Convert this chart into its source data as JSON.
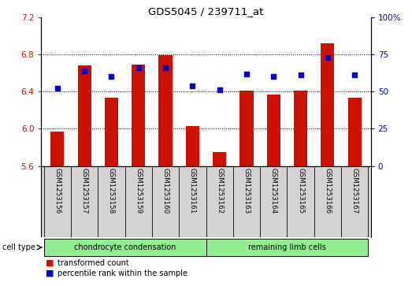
{
  "title": "GDS5045 / 239711_at",
  "samples": [
    "GSM1253156",
    "GSM1253157",
    "GSM1253158",
    "GSM1253159",
    "GSM1253160",
    "GSM1253161",
    "GSM1253162",
    "GSM1253163",
    "GSM1253164",
    "GSM1253165",
    "GSM1253166",
    "GSM1253167"
  ],
  "transformed_count": [
    5.97,
    6.68,
    6.33,
    6.69,
    6.79,
    6.03,
    5.75,
    6.41,
    6.37,
    6.41,
    6.92,
    6.33
  ],
  "percentile_rank": [
    52,
    64,
    60,
    66,
    66,
    54,
    51,
    62,
    60,
    61,
    73,
    61
  ],
  "ylim_left": [
    5.6,
    7.2
  ],
  "ylim_right": [
    0,
    100
  ],
  "yticks_left": [
    5.6,
    6.0,
    6.4,
    6.8,
    7.2
  ],
  "yticks_right": [
    0,
    25,
    50,
    75,
    100
  ],
  "bar_color": "#cc1100",
  "dot_color": "#0000cc",
  "grid_color": "#000000",
  "cell_type_groups": [
    {
      "label": "chondrocyte condensation",
      "start": 0,
      "end": 5,
      "color": "#90ee90"
    },
    {
      "label": "remaining limb cells",
      "start": 6,
      "end": 11,
      "color": "#90ee90"
    }
  ],
  "cell_type_label": "cell type",
  "legend_items": [
    {
      "label": "transformed count",
      "color": "#cc1100"
    },
    {
      "label": "percentile rank within the sample",
      "color": "#0000cc"
    }
  ],
  "bar_bottom": 5.6,
  "bar_width": 0.5
}
